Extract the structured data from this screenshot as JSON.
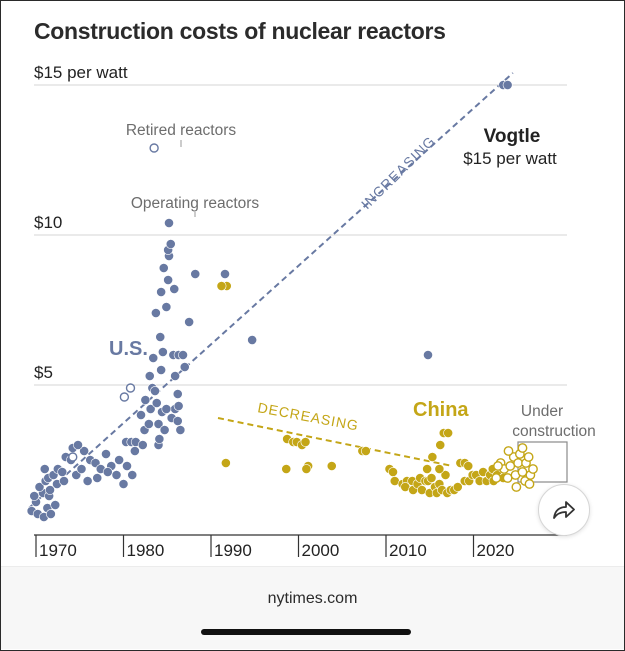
{
  "title": "Construction costs of nuclear reactors",
  "footer": {
    "source": "nytimes.com"
  },
  "share": {
    "icon": "share-arrow-icon"
  },
  "colors": {
    "us": "#6879a2",
    "china": "#c4a617",
    "grid": "#d4d4d4",
    "axis": "#333333"
  },
  "chart_data": {
    "type": "scatter",
    "title": "Construction costs of nuclear reactors",
    "x_ticks": [
      "1970",
      "1980",
      "1990",
      "2000",
      "2010",
      "2020"
    ],
    "y_ticks": [
      {
        "value": 5,
        "label": "$5"
      },
      {
        "value": 10,
        "label": "$10"
      },
      {
        "value": 15,
        "label": "$15 per watt"
      }
    ],
    "xlim": [
      1967,
      2029
    ],
    "ylim": [
      0,
      15.5
    ],
    "grid": "horizontal",
    "annotations": {
      "retired": "Retired reactors",
      "operating": "Operating reactors",
      "us": "U.S.",
      "china": "China",
      "increasing": "INCREASING",
      "decreasing": "DECREASING",
      "vogtle_name": "Vogtle",
      "vogtle_value": "$15 per watt",
      "under_construction_1": "Under",
      "under_construction_2": "construction"
    },
    "trend_lines": [
      {
        "name": "INCREASING",
        "from": [
          1969.2,
          0.9
        ],
        "to": [
          2024.5,
          15.4
        ]
      },
      {
        "name": "DECREASING",
        "from": [
          1990.8,
          3.9
        ],
        "to": [
          2017.6,
          2.3
        ]
      }
    ],
    "series": [
      {
        "name": "U.S.",
        "type": "operating",
        "points": [
          [
            1969.5,
            0.8
          ],
          [
            1970.2,
            0.7
          ],
          [
            1970.9,
            0.6
          ],
          [
            1971.3,
            0.9
          ],
          [
            1970.0,
            1.1
          ],
          [
            1969.8,
            1.3
          ],
          [
            1970.8,
            1.4
          ],
          [
            1971.7,
            0.7
          ],
          [
            1972.2,
            1.0
          ],
          [
            1971.5,
            1.3
          ],
          [
            1970.4,
            1.6
          ],
          [
            1971.1,
            1.8
          ],
          [
            1971.6,
            1.5
          ],
          [
            1972.4,
            1.7
          ],
          [
            1971.4,
            1.9
          ],
          [
            1972.0,
            2.0
          ],
          [
            1972.5,
            2.2
          ],
          [
            1973.2,
            1.8
          ],
          [
            1973.0,
            2.1
          ],
          [
            1971.0,
            2.2
          ],
          [
            1973.4,
            2.6
          ],
          [
            1974.0,
            2.5
          ],
          [
            1974.2,
            2.9
          ],
          [
            1974.6,
            2.0
          ],
          [
            1975.2,
            2.2
          ],
          [
            1975.5,
            2.8
          ],
          [
            1974.8,
            3.0
          ],
          [
            1975.9,
            1.8
          ],
          [
            1976.2,
            2.5
          ],
          [
            1976.8,
            2.4
          ],
          [
            1977.4,
            2.2
          ],
          [
            1977.0,
            1.9
          ],
          [
            1978.0,
            2.7
          ],
          [
            1978.6,
            2.3
          ],
          [
            1978.2,
            2.1
          ],
          [
            1979.2,
            2.0
          ],
          [
            1979.5,
            2.5
          ],
          [
            1980.4,
            2.3
          ],
          [
            1980.0,
            1.7
          ],
          [
            1980.3,
            3.1
          ],
          [
            1980.9,
            3.1
          ],
          [
            1981.0,
            2.0
          ],
          [
            1981.4,
            3.1
          ],
          [
            1981.3,
            2.8
          ],
          [
            1982.2,
            3.0
          ],
          [
            1982.4,
            3.5
          ],
          [
            1982.0,
            4.0
          ],
          [
            1982.5,
            4.5
          ],
          [
            1982.9,
            3.7
          ],
          [
            1983.1,
            4.2
          ],
          [
            1983.3,
            4.9
          ],
          [
            1983.0,
            5.3
          ],
          [
            1983.6,
            4.8
          ],
          [
            1983.4,
            5.9
          ],
          [
            1983.8,
            4.4
          ],
          [
            1984.0,
            3.0
          ],
          [
            1984.0,
            3.7
          ],
          [
            1984.4,
            4.1
          ],
          [
            1984.7,
            3.5
          ],
          [
            1984.3,
            5.5
          ],
          [
            1984.5,
            6.1
          ],
          [
            1984.2,
            6.6
          ],
          [
            1983.7,
            7.4
          ],
          [
            1984.9,
            7.6
          ],
          [
            1984.3,
            8.1
          ],
          [
            1985.1,
            8.5
          ],
          [
            1984.6,
            8.9
          ],
          [
            1985.2,
            9.3
          ],
          [
            1985.1,
            9.5
          ],
          [
            1985.4,
            9.7
          ],
          [
            1985.9,
            5.3
          ],
          [
            1985.7,
            6.0
          ],
          [
            1986.3,
            6.0
          ],
          [
            1986.8,
            6.0
          ],
          [
            1986.2,
            4.7
          ],
          [
            1985.9,
            4.2
          ],
          [
            1985.5,
            3.9
          ],
          [
            1986.2,
            3.8
          ],
          [
            1986.5,
            3.5
          ],
          [
            1985.8,
            8.2
          ],
          [
            1986.3,
            4.3
          ],
          [
            1987.0,
            5.6
          ],
          [
            1987.5,
            7.1
          ],
          [
            1988.2,
            8.7
          ],
          [
            1991.6,
            8.7
          ],
          [
            1994.7,
            6.5
          ],
          [
            1985.2,
            10.4
          ],
          [
            1984.9,
            4.2
          ],
          [
            1984.1,
            3.2
          ],
          [
            2014.8,
            6.0
          ]
        ]
      },
      {
        "name": "Retired reactors",
        "type": "retired",
        "points": [
          [
            1983.5,
            12.9
          ],
          [
            1980.1,
            4.6
          ],
          [
            1980.8,
            4.9
          ],
          [
            1974.2,
            2.6
          ]
        ]
      },
      {
        "name": "Vogtle",
        "type": "operating",
        "points": [
          [
            2023.4,
            15.0
          ],
          [
            2023.9,
            15.0
          ]
        ]
      },
      {
        "name": "China",
        "type": "operating",
        "points": [
          [
            1991.8,
            8.3
          ],
          [
            1991.2,
            8.3
          ],
          [
            1991.7,
            2.4
          ],
          [
            1998.7,
            3.2
          ],
          [
            1999.4,
            3.1
          ],
          [
            1999.8,
            3.1
          ],
          [
            2000.4,
            3.0
          ],
          [
            2000.8,
            3.1
          ],
          [
            1998.6,
            2.2
          ],
          [
            2001.1,
            2.3
          ],
          [
            2000.9,
            2.2
          ],
          [
            2003.8,
            2.3
          ],
          [
            2007.3,
            2.8
          ],
          [
            2007.7,
            2.8
          ],
          [
            2010.4,
            2.2
          ],
          [
            2010.8,
            2.1
          ],
          [
            2011.0,
            1.8
          ],
          [
            2011.9,
            1.7
          ],
          [
            2012.4,
            1.8
          ],
          [
            2012.2,
            1.6
          ],
          [
            2013.0,
            1.8
          ],
          [
            2013.1,
            1.5
          ],
          [
            2013.6,
            1.7
          ],
          [
            2013.9,
            1.9
          ],
          [
            2014.1,
            1.5
          ],
          [
            2014.5,
            1.8
          ],
          [
            2014.8,
            1.8
          ],
          [
            2015.0,
            1.4
          ],
          [
            2015.2,
            1.9
          ],
          [
            2015.6,
            1.6
          ],
          [
            2015.8,
            1.4
          ],
          [
            2016.1,
            1.7
          ],
          [
            2016.4,
            1.5
          ],
          [
            2016.8,
            2.0
          ],
          [
            2017.0,
            1.4
          ],
          [
            2017.4,
            1.5
          ],
          [
            2017.8,
            1.5
          ],
          [
            2018.2,
            1.6
          ],
          [
            2019.0,
            1.8
          ],
          [
            2019.5,
            1.8
          ],
          [
            2019.9,
            2.0
          ],
          [
            2020.3,
            2.0
          ],
          [
            2020.7,
            1.8
          ],
          [
            2021.1,
            2.1
          ],
          [
            2021.5,
            1.8
          ],
          [
            2021.9,
            2.0
          ],
          [
            2022.2,
            2.2
          ],
          [
            2022.7,
            2.0
          ],
          [
            2023.0,
            2.3
          ],
          [
            2022.3,
            1.8
          ],
          [
            2023.4,
            1.9
          ],
          [
            2018.5,
            2.4
          ],
          [
            2019.0,
            2.4
          ],
          [
            2019.4,
            2.3
          ],
          [
            2016.2,
            3.0
          ],
          [
            2016.6,
            3.4
          ],
          [
            2017.1,
            3.4
          ],
          [
            2016.1,
            2.2
          ],
          [
            2015.3,
            2.6
          ],
          [
            2014.7,
            2.2
          ]
        ]
      },
      {
        "name": "Under construction",
        "type": "under_construction",
        "points": [
          [
            2023.1,
            2.4
          ],
          [
            2023.5,
            2.2
          ],
          [
            2023.9,
            1.9
          ],
          [
            2024.2,
            2.3
          ],
          [
            2024.6,
            2.6
          ],
          [
            2024.8,
            2.0
          ],
          [
            2025.1,
            2.4
          ],
          [
            2025.3,
            2.7
          ],
          [
            2025.6,
            2.1
          ],
          [
            2025.9,
            1.8
          ],
          [
            2026.0,
            2.4
          ],
          [
            2026.3,
            2.6
          ],
          [
            2026.5,
            2.0
          ],
          [
            2026.8,
            2.2
          ],
          [
            2024.0,
            2.8
          ],
          [
            2024.9,
            1.6
          ],
          [
            2022.6,
            1.9
          ],
          [
            2022.8,
            2.3
          ],
          [
            2025.6,
            2.9
          ],
          [
            2026.4,
            1.7
          ]
        ]
      }
    ]
  }
}
